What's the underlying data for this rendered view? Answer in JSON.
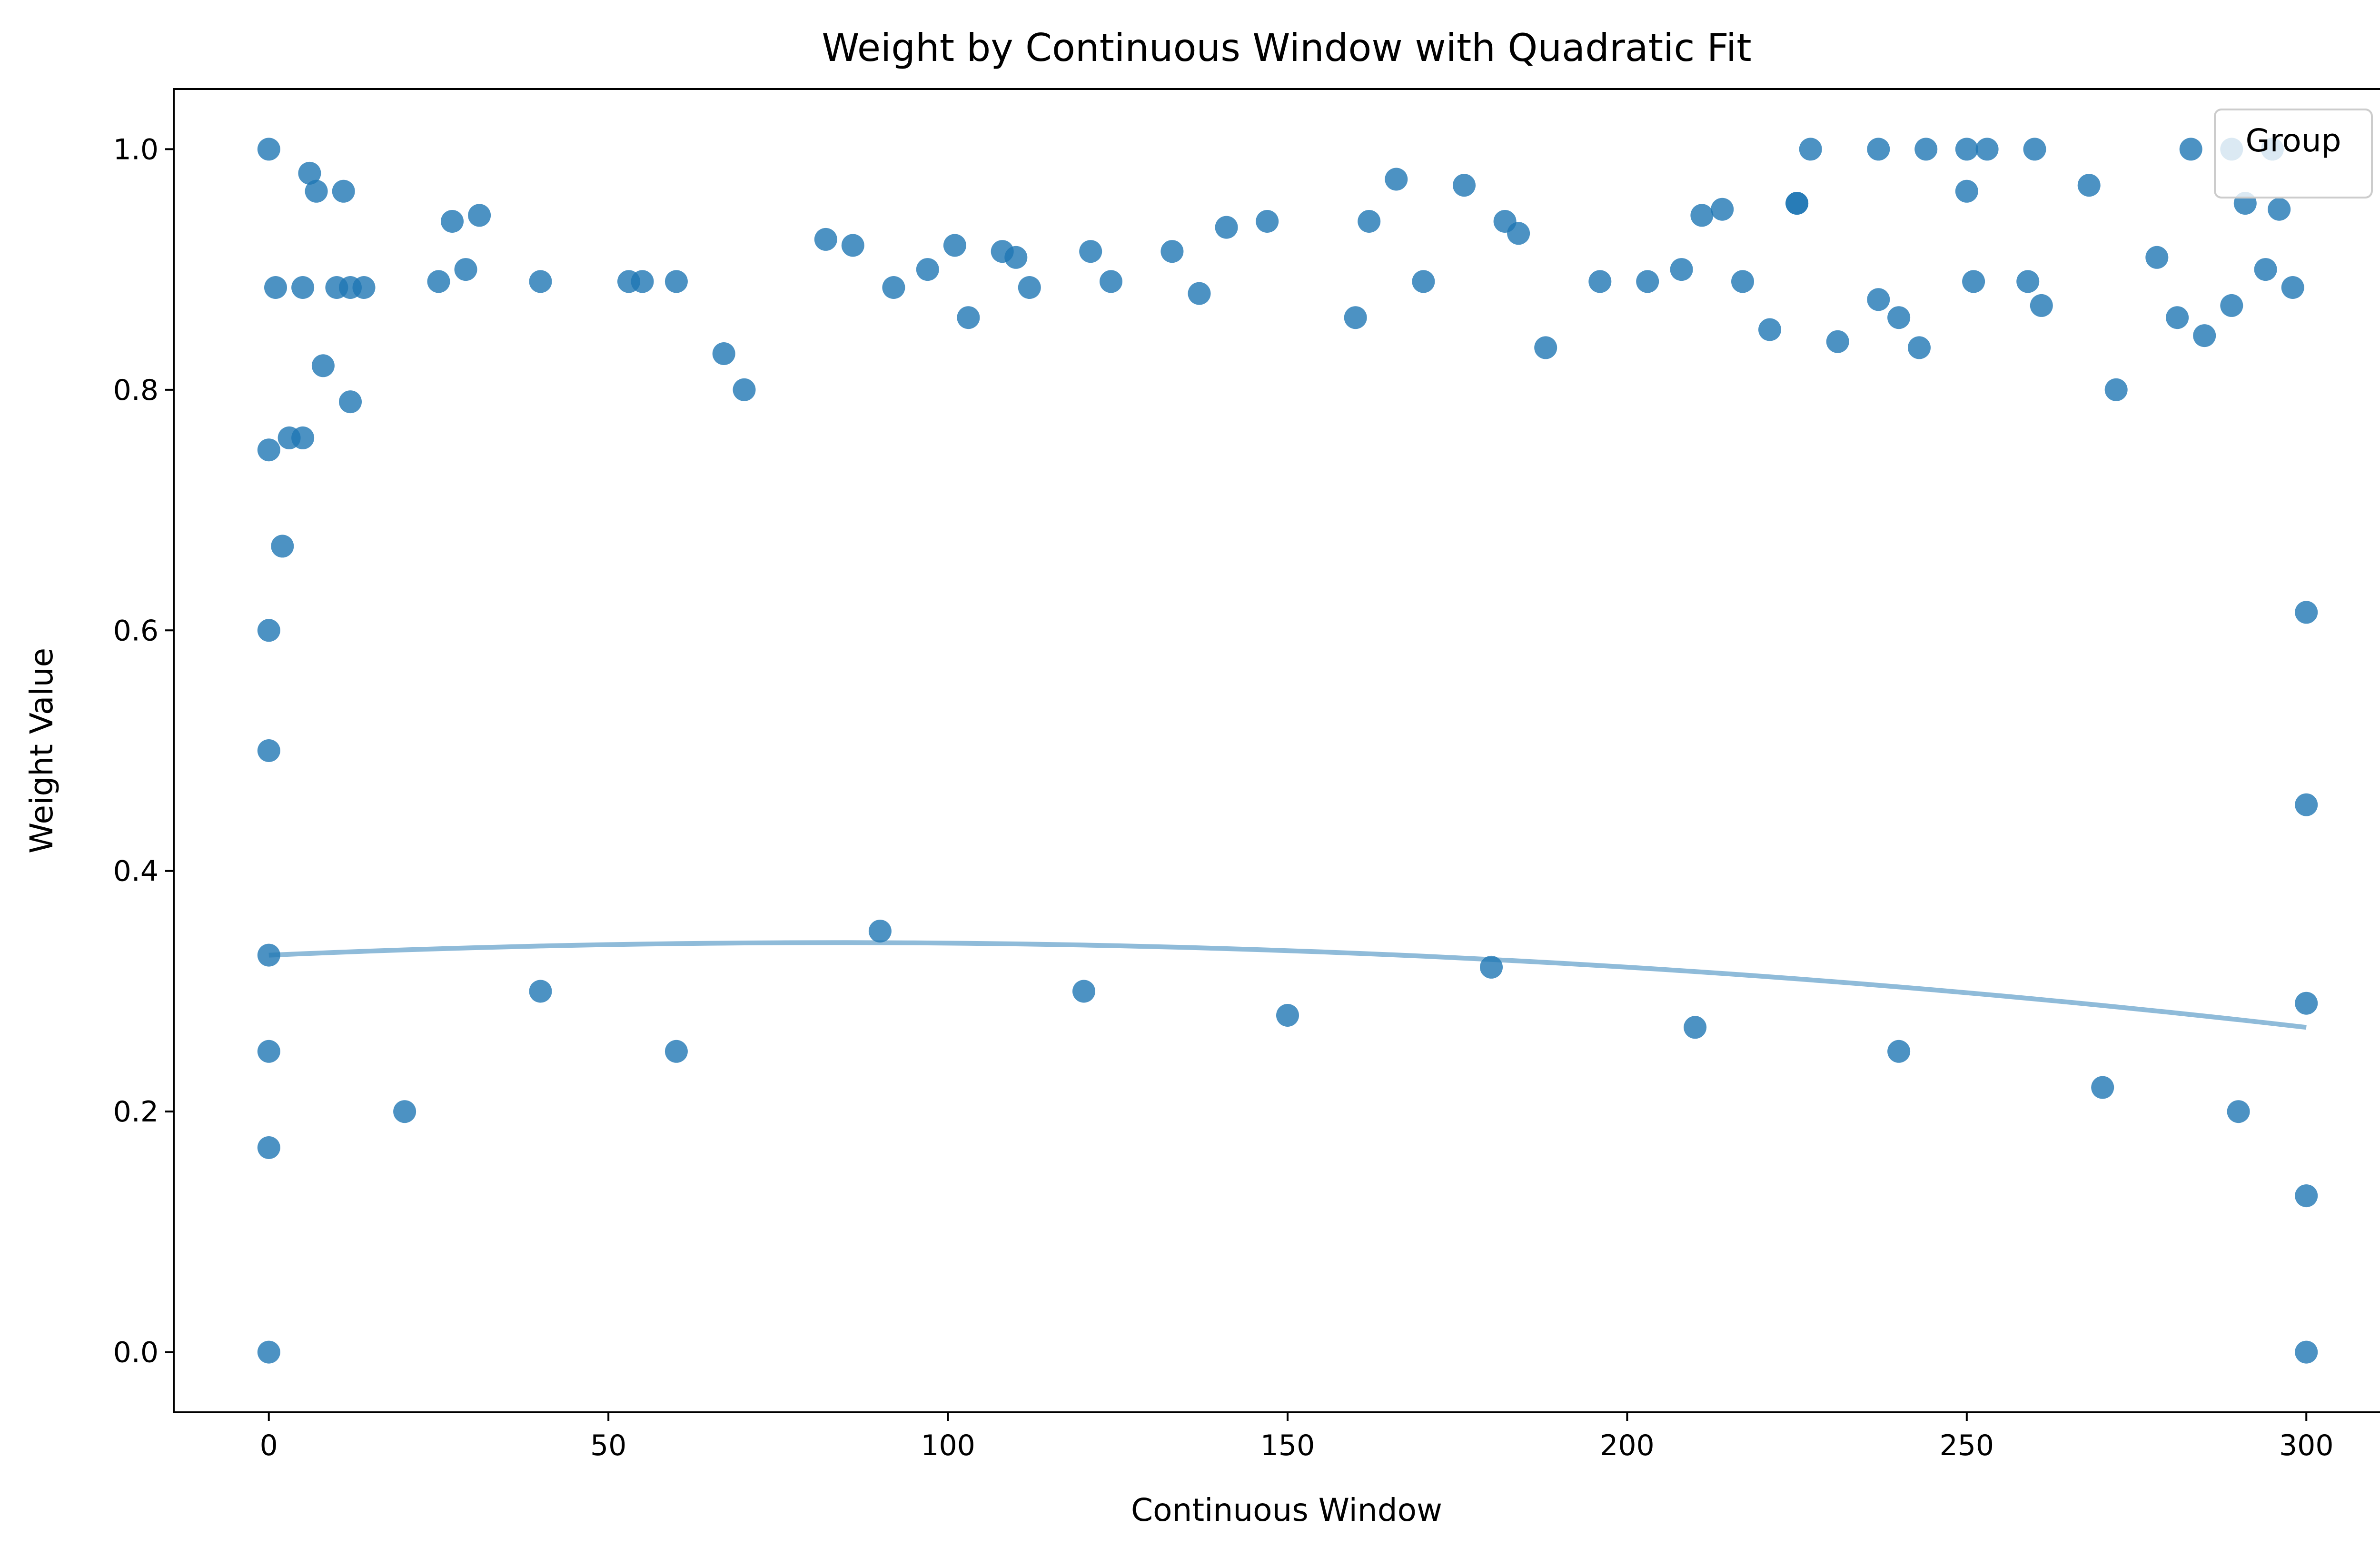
{
  "chart_data": {
    "type": "scatter",
    "title": "Weight by Continuous Window with Quadratic Fit",
    "xlabel": "Continuous Window",
    "ylabel": "Weight Value",
    "xlim": [
      -14,
      314
    ],
    "ylim": [
      -0.05,
      1.05
    ],
    "xticks": [
      0,
      50,
      100,
      150,
      200,
      250,
      300
    ],
    "xtick_labels": [
      "0",
      "50",
      "100",
      "150",
      "200",
      "250",
      "300"
    ],
    "yticks": [
      0.0,
      0.2,
      0.4,
      0.6,
      0.8,
      1.0
    ],
    "ytick_labels": [
      "0.0",
      "0.2",
      "0.4",
      "0.6",
      "0.8",
      "1.0"
    ],
    "grid": false,
    "legend": {
      "title": "Group",
      "placement": "top-right",
      "entries": []
    },
    "marker_color": "#1f77b4",
    "marker_opacity": 0.8,
    "series": [
      {
        "marker": "circle",
        "points": [
          [
            0,
            0.0
          ],
          [
            0,
            1.0
          ],
          [
            0,
            0.75
          ],
          [
            0,
            0.6
          ],
          [
            0,
            0.5
          ],
          [
            0,
            0.33
          ],
          [
            0,
            0.25
          ],
          [
            0,
            0.17
          ],
          [
            1,
            0.885
          ],
          [
            2,
            0.67
          ],
          [
            3,
            0.76
          ],
          [
            5,
            0.76
          ],
          [
            5,
            0.885
          ],
          [
            6,
            0.98
          ],
          [
            7,
            0.965
          ],
          [
            10,
            0.885
          ],
          [
            11,
            0.965
          ],
          [
            12,
            0.885
          ],
          [
            14,
            0.885
          ],
          [
            8,
            0.82
          ],
          [
            12,
            0.79
          ],
          [
            25,
            0.89
          ],
          [
            27,
            0.94
          ],
          [
            31,
            0.945
          ],
          [
            29,
            0.9
          ],
          [
            40,
            0.89
          ],
          [
            53,
            0.89
          ],
          [
            55,
            0.89
          ],
          [
            60,
            0.89
          ],
          [
            67,
            0.83
          ],
          [
            70,
            0.8
          ],
          [
            82,
            0.925
          ],
          [
            86,
            0.92
          ],
          [
            92,
            0.885
          ],
          [
            97,
            0.9
          ],
          [
            101,
            0.92
          ],
          [
            103,
            0.86
          ],
          [
            108,
            0.915
          ],
          [
            110,
            0.91
          ],
          [
            112,
            0.885
          ],
          [
            121,
            0.915
          ],
          [
            124,
            0.89
          ],
          [
            133,
            0.915
          ],
          [
            137,
            0.88
          ],
          [
            141,
            0.935
          ],
          [
            147,
            0.94
          ],
          [
            160,
            0.86
          ],
          [
            162,
            0.94
          ],
          [
            166,
            0.975
          ],
          [
            170,
            0.89
          ],
          [
            176,
            0.97
          ],
          [
            182,
            0.94
          ],
          [
            184,
            0.93
          ],
          [
            188,
            0.835
          ],
          [
            196,
            0.89
          ],
          [
            203,
            0.89
          ],
          [
            208,
            0.9
          ],
          [
            211,
            0.945
          ],
          [
            214,
            0.95
          ],
          [
            217,
            0.89
          ],
          [
            221,
            0.85
          ],
          [
            225,
            0.955
          ],
          [
            231,
            0.84
          ],
          [
            237,
            0.875
          ],
          [
            240,
            0.86
          ],
          [
            243,
            0.835
          ],
          [
            250,
            0.965
          ],
          [
            251,
            0.89
          ],
          [
            259,
            0.89
          ],
          [
            261,
            0.87
          ],
          [
            268,
            0.97
          ],
          [
            272,
            0.8
          ],
          [
            278,
            0.91
          ],
          [
            281,
            0.86
          ],
          [
            285,
            0.845
          ],
          [
            289,
            0.87
          ],
          [
            291,
            0.955
          ],
          [
            294,
            0.9
          ],
          [
            296,
            0.95
          ],
          [
            298,
            0.885
          ],
          [
            300,
            0.615
          ],
          [
            300,
            0.455
          ],
          [
            300,
            0.29
          ],
          [
            300,
            0.13
          ],
          [
            300,
            0.0
          ],
          [
            250,
            1.0
          ],
          [
            253,
            1.0
          ],
          [
            260,
            1.0
          ],
          [
            283,
            1.0
          ],
          [
            289,
            1.0
          ],
          [
            295,
            1.0
          ],
          [
            237,
            1.0
          ],
          [
            244,
            1.0
          ],
          [
            227,
            1.0
          ],
          [
            225,
            0.955
          ],
          [
            20,
            0.2
          ],
          [
            40,
            0.3
          ],
          [
            60,
            0.25
          ],
          [
            90,
            0.35
          ],
          [
            120,
            0.3
          ],
          [
            150,
            0.28
          ],
          [
            180,
            0.32
          ],
          [
            210,
            0.27
          ],
          [
            240,
            0.25
          ],
          [
            270,
            0.22
          ],
          [
            290,
            0.2
          ]
        ]
      }
    ],
    "quadratic_fit": {
      "a": -1.5e-06,
      "b": 0.00025,
      "c": 0.33
    }
  }
}
